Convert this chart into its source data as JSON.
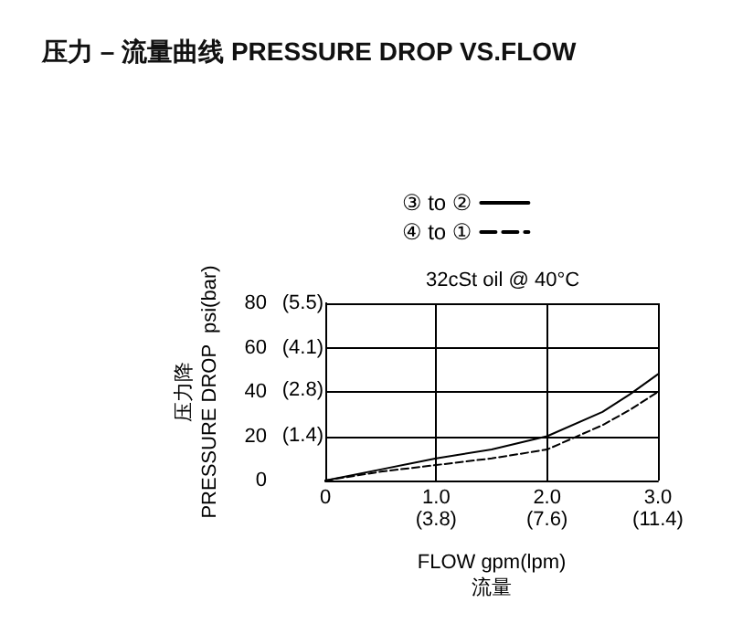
{
  "chart_data": {
    "type": "line",
    "title": "压力 – 流量曲线 PRESSURE DROP VS.FLOW",
    "subtitle": "32cSt oil @ 40°C",
    "xlabel": "FLOW gpm(lpm)\n流量",
    "ylabel": "压力降\nPRESSURE DROP  psi(bar)",
    "x": [
      0,
      0.5,
      1,
      1.5,
      2,
      2.5,
      2.75,
      3
    ],
    "series": [
      {
        "name": "③ to ②",
        "color": "#000000",
        "line_style": "solid",
        "values": [
          0,
          5,
          10,
          14,
          20,
          31,
          39,
          48
        ]
      },
      {
        "name": "④ to ①",
        "color": "#000000",
        "line_style": "dashed",
        "values": [
          0,
          4,
          7,
          10,
          14,
          25,
          32,
          40
        ]
      }
    ],
    "xlim": [
      0,
      3
    ],
    "xticks": [
      0,
      {
        "value": 1,
        "label": "1.0"
      },
      {
        "value": 2,
        "label": "2.0"
      },
      {
        "value": 3,
        "label": "3.0"
      }
    ],
    "x2lim": [
      0,
      11.4
    ],
    "x2ticks": [
      {
        "value": 3.8,
        "label": "(3.8)"
      },
      {
        "value": 7.6,
        "label": "(7.6)"
      },
      {
        "value": 11.4,
        "label": "(11.4)"
      }
    ],
    "ylim": [
      0,
      80
    ],
    "yticks": [
      0,
      20,
      40,
      60,
      80
    ],
    "y2lim": [
      0,
      5.5
    ],
    "y2ticks": [
      {
        "value": 1.4,
        "label": "(1.4)"
      },
      {
        "value": 2.8,
        "label": "(2.8)"
      },
      {
        "value": 4.1,
        "label": "(4.1)"
      },
      {
        "value": 5.5,
        "label": "(5.5)"
      }
    ],
    "grid": true,
    "legend": "top",
    "marker": "none"
  }
}
